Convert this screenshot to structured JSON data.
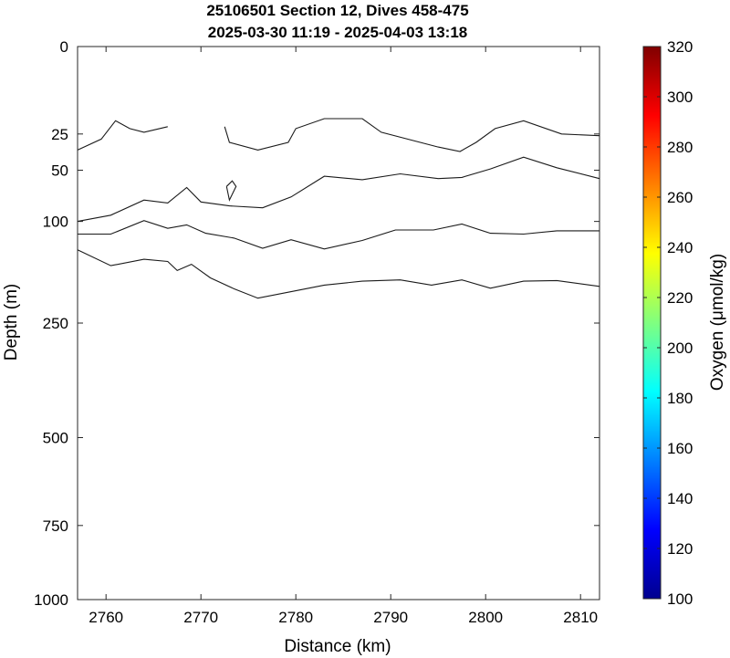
{
  "chart_data": {
    "type": "contour",
    "title": [
      "25106501 Section 12, Dives 458-475",
      "2025-03-30 11:19 - 2025-04-03 13:18"
    ],
    "xlabel": "Distance (km)",
    "ylabel": "Depth (m)",
    "colorbar_label": "Oxygen (μmol/kg)",
    "xlim": [
      2757,
      2812
    ],
    "xticks": [
      2760,
      2770,
      2780,
      2790,
      2800,
      2810
    ],
    "yscale": "sqrt",
    "ylim": [
      0,
      1000
    ],
    "yticks": [
      0,
      25,
      50,
      100,
      250,
      500,
      750,
      1000
    ],
    "clim": [
      100,
      320
    ],
    "cticks": [
      100,
      120,
      140,
      160,
      180,
      200,
      220,
      240,
      260,
      280,
      300,
      320
    ],
    "colormap": "jet",
    "contours": [
      [
        [
          2757,
          35
        ],
        [
          2759.5,
          28
        ],
        [
          2761,
          18
        ],
        [
          2762.5,
          22
        ],
        [
          2764,
          24
        ],
        [
          2766.5,
          21
        ]
      ],
      [
        [
          2772.5,
          21
        ],
        [
          2773,
          30
        ],
        [
          2776,
          35
        ],
        [
          2779.2,
          30
        ],
        [
          2780,
          22
        ],
        [
          2783,
          17
        ],
        [
          2787,
          17
        ],
        [
          2789,
          24
        ],
        [
          2795,
          33
        ],
        [
          2797.3,
          36
        ],
        [
          2799,
          30
        ],
        [
          2801,
          22
        ],
        [
          2804,
          18
        ],
        [
          2808,
          25
        ],
        [
          2812,
          26
        ]
      ],
      [
        [
          2757,
          100
        ],
        [
          2760.5,
          93
        ],
        [
          2764,
          77
        ],
        [
          2766.5,
          80
        ],
        [
          2768.5,
          65
        ],
        [
          2770,
          79
        ],
        [
          2773,
          83
        ],
        [
          2776.5,
          85
        ],
        [
          2779.5,
          74
        ],
        [
          2783,
          55
        ],
        [
          2787,
          58
        ],
        [
          2791,
          53
        ],
        [
          2795,
          57
        ],
        [
          2797.5,
          56
        ],
        [
          2800.5,
          49
        ],
        [
          2804,
          40
        ],
        [
          2807.5,
          48
        ],
        [
          2812,
          57
        ]
      ],
      [
        [
          2772.7,
          64
        ],
        [
          2773.3,
          59
        ],
        [
          2773.7,
          64
        ],
        [
          2773,
          77
        ],
        [
          2772.7,
          64
        ]
      ],
      [
        [
          2757,
          115
        ],
        [
          2760.5,
          115
        ],
        [
          2764,
          99
        ],
        [
          2766.5,
          108
        ],
        [
          2768.5,
          104
        ],
        [
          2770.5,
          114
        ],
        [
          2773.5,
          120
        ],
        [
          2776.5,
          133
        ],
        [
          2779.5,
          122
        ],
        [
          2783,
          134
        ],
        [
          2787,
          123
        ],
        [
          2790.5,
          110
        ],
        [
          2794.5,
          110
        ],
        [
          2797.5,
          103
        ],
        [
          2800.5,
          114
        ],
        [
          2804,
          115
        ],
        [
          2807.5,
          111
        ],
        [
          2812,
          111
        ]
      ],
      [
        [
          2757,
          135
        ],
        [
          2760.5,
          157
        ],
        [
          2764,
          148
        ],
        [
          2766.5,
          151
        ],
        [
          2767.5,
          164
        ],
        [
          2769,
          155
        ],
        [
          2771,
          175
        ],
        [
          2773.5,
          192
        ],
        [
          2776,
          207
        ],
        [
          2780,
          195
        ],
        [
          2783,
          186
        ],
        [
          2787,
          180
        ],
        [
          2791,
          178
        ],
        [
          2794.3,
          186
        ],
        [
          2797.5,
          178
        ],
        [
          2800.5,
          191
        ],
        [
          2804,
          180
        ],
        [
          2807.5,
          179
        ],
        [
          2812,
          188
        ]
      ]
    ]
  }
}
